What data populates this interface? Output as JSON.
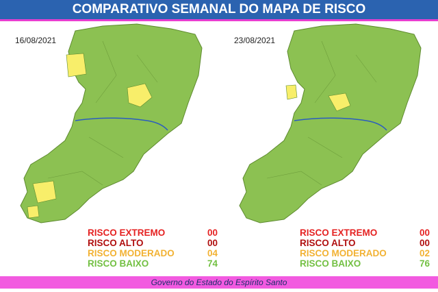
{
  "header": {
    "title": "COMPARATIVO SEMANAL DO MAPA DE RISCO"
  },
  "maps": [
    {
      "date": "16/08/2021",
      "legend": [
        {
          "label": "RISCO EXTREMO",
          "count": "00"
        },
        {
          "label": "RISCO ALTO",
          "count": "00"
        },
        {
          "label": "RISCO MODERADO",
          "count": "04"
        },
        {
          "label": "RISCO BAIXO",
          "count": "74"
        }
      ]
    },
    {
      "date": "23/08/2021",
      "legend": [
        {
          "label": "RISCO EXTREMO",
          "count": "00"
        },
        {
          "label": "RISCO ALTO",
          "count": "00"
        },
        {
          "label": "RISCO MODERADO",
          "count": "02"
        },
        {
          "label": "RISCO BAIXO",
          "count": "76"
        }
      ]
    }
  ],
  "footer": {
    "text": "Governo do Estado do Espírito Santo"
  }
}
